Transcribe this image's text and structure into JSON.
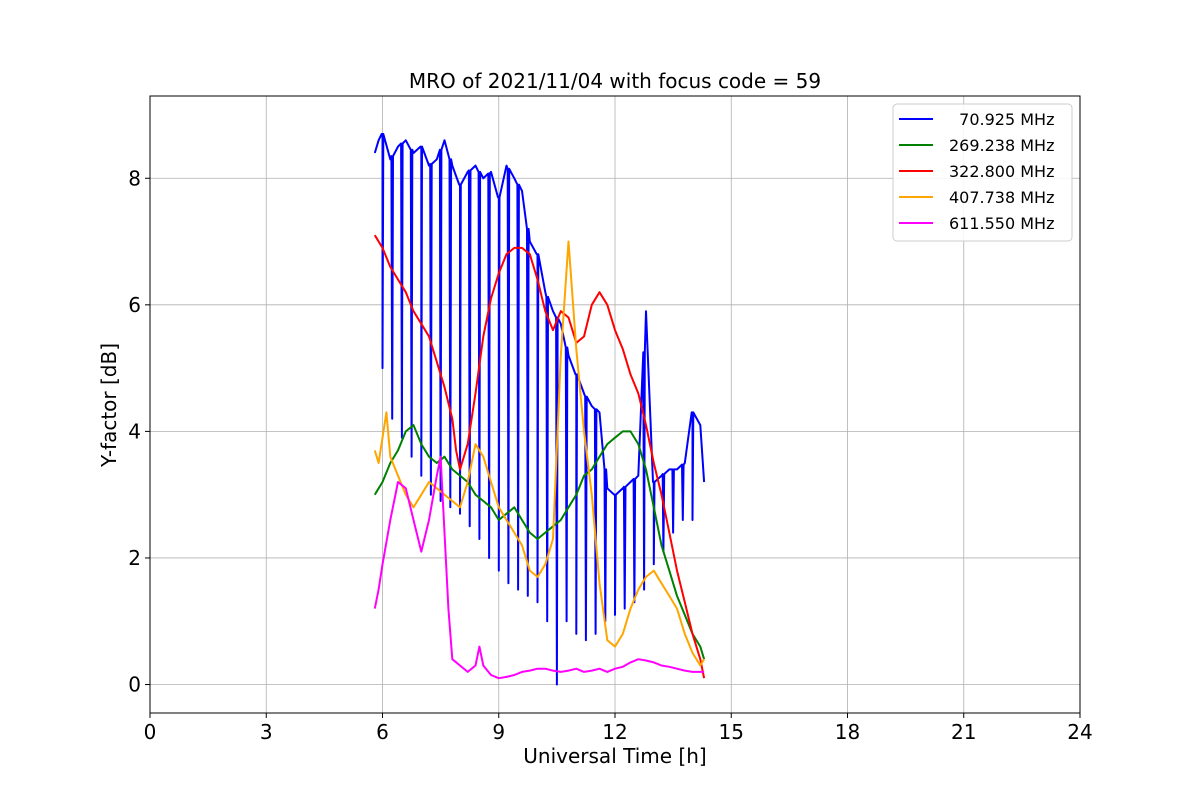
{
  "chart_data": {
    "type": "line",
    "title": "MRO of 2021/11/04 with focus code = 59",
    "xlabel": "Universal Time [h]",
    "ylabel": "Y-factor [dB]",
    "xlim": [
      0,
      24
    ],
    "ylim": [
      -0.45,
      9.3
    ],
    "xticks": [
      0,
      3,
      6,
      9,
      12,
      15,
      18,
      21,
      24
    ],
    "yticks": [
      0,
      2,
      4,
      6,
      8
    ],
    "grid": true,
    "legend_position": "top-right",
    "series": [
      {
        "name": "  70.925 MHz",
        "color": "#0000ff",
        "x": [
          5.8,
          5.9,
          6.0,
          6.2,
          6.4,
          6.6,
          6.8,
          7.0,
          7.2,
          7.4,
          7.6,
          7.8,
          8.0,
          8.2,
          8.4,
          8.6,
          8.8,
          9.0,
          9.2,
          9.4,
          9.6,
          9.8,
          10.0,
          10.2,
          10.4,
          10.6,
          10.8,
          11.0,
          11.2,
          11.4,
          11.6,
          11.8,
          12.0,
          12.2,
          12.4,
          12.6,
          12.8,
          13.0,
          13.2,
          13.4,
          13.6,
          13.8,
          14.0,
          14.2,
          14.3
        ],
        "y": [
          8.4,
          8.6,
          8.7,
          8.3,
          8.5,
          8.6,
          8.4,
          8.5,
          8.2,
          8.3,
          8.6,
          8.2,
          7.9,
          8.1,
          8.2,
          8.0,
          8.1,
          7.7,
          8.2,
          8.0,
          7.8,
          7.0,
          6.8,
          6.2,
          5.9,
          5.7,
          5.2,
          4.9,
          4.6,
          4.4,
          4.3,
          3.1,
          3.0,
          3.1,
          3.2,
          3.3,
          5.9,
          3.2,
          3.3,
          3.4,
          3.4,
          3.5,
          4.3,
          4.1,
          3.2
        ],
        "dip_x": [
          6.0,
          6.25,
          6.5,
          6.75,
          7.0,
          7.25,
          7.5,
          7.75,
          8.0,
          8.25,
          8.5,
          8.75,
          9.0,
          9.25,
          9.5,
          9.75,
          10.0,
          10.25,
          10.5,
          10.75,
          11.0,
          11.25,
          11.5,
          11.75,
          12.0,
          12.25,
          12.5,
          12.75,
          13.0,
          13.25,
          13.5,
          13.75,
          14.0
        ],
        "dip_y": [
          5.0,
          4.2,
          3.9,
          3.6,
          3.3,
          3.0,
          2.9,
          2.8,
          2.7,
          2.5,
          2.3,
          2.0,
          1.8,
          1.6,
          1.5,
          1.4,
          1.3,
          1.0,
          0.0,
          1.0,
          0.8,
          0.7,
          0.8,
          1.0,
          1.1,
          1.2,
          1.3,
          1.5,
          1.9,
          2.1,
          2.4,
          2.6,
          2.6
        ]
      },
      {
        "name": "269.238 MHz",
        "color": "#008000",
        "x": [
          5.8,
          6.0,
          6.2,
          6.4,
          6.6,
          6.8,
          7.0,
          7.2,
          7.4,
          7.6,
          7.8,
          8.0,
          8.2,
          8.4,
          8.6,
          8.8,
          9.0,
          9.2,
          9.4,
          9.6,
          9.8,
          10.0,
          10.2,
          10.4,
          10.6,
          10.8,
          11.0,
          11.2,
          11.4,
          11.6,
          11.8,
          12.0,
          12.2,
          12.4,
          12.6,
          12.8,
          13.0,
          13.2,
          13.4,
          13.6,
          13.8,
          14.0,
          14.2,
          14.3
        ],
        "y": [
          3.0,
          3.2,
          3.5,
          3.7,
          4.0,
          4.1,
          3.8,
          3.6,
          3.5,
          3.6,
          3.4,
          3.3,
          3.2,
          3.0,
          2.9,
          2.8,
          2.6,
          2.7,
          2.8,
          2.6,
          2.4,
          2.3,
          2.4,
          2.5,
          2.6,
          2.8,
          3.0,
          3.3,
          3.4,
          3.6,
          3.8,
          3.9,
          4.0,
          4.0,
          3.8,
          3.4,
          2.8,
          2.2,
          1.8,
          1.4,
          1.1,
          0.8,
          0.6,
          0.4
        ]
      },
      {
        "name": "322.800 MHz",
        "color": "#ff0000",
        "x": [
          5.8,
          6.0,
          6.2,
          6.4,
          6.6,
          6.8,
          7.0,
          7.2,
          7.4,
          7.6,
          7.8,
          7.9,
          8.0,
          8.2,
          8.4,
          8.6,
          8.8,
          9.0,
          9.2,
          9.4,
          9.6,
          9.8,
          10.0,
          10.2,
          10.4,
          10.6,
          10.8,
          11.0,
          11.2,
          11.4,
          11.6,
          11.8,
          12.0,
          12.2,
          12.4,
          12.6,
          12.8,
          13.0,
          13.2,
          13.4,
          13.6,
          13.8,
          14.0,
          14.2,
          14.3
        ],
        "y": [
          7.1,
          6.9,
          6.6,
          6.4,
          6.2,
          5.9,
          5.7,
          5.5,
          5.1,
          4.7,
          4.2,
          3.7,
          3.4,
          3.8,
          4.6,
          5.5,
          6.1,
          6.5,
          6.8,
          6.9,
          6.9,
          6.8,
          6.4,
          5.9,
          5.6,
          5.9,
          5.8,
          5.4,
          5.5,
          6.0,
          6.2,
          6.0,
          5.6,
          5.3,
          4.9,
          4.6,
          4.1,
          3.5,
          3.0,
          2.4,
          1.8,
          1.3,
          0.8,
          0.4,
          0.1
        ]
      },
      {
        "name": "407.738 MHz",
        "color": "#ffa500",
        "x": [
          5.8,
          5.9,
          6.0,
          6.1,
          6.2,
          6.4,
          6.6,
          6.8,
          7.0,
          7.2,
          7.4,
          7.6,
          7.8,
          8.0,
          8.2,
          8.4,
          8.6,
          8.8,
          9.0,
          9.2,
          9.4,
          9.6,
          9.8,
          10.0,
          10.2,
          10.4,
          10.6,
          10.8,
          11.0,
          11.2,
          11.4,
          11.6,
          11.8,
          12.0,
          12.2,
          12.4,
          12.6,
          12.8,
          13.0,
          13.2,
          13.4,
          13.6,
          13.8,
          14.0,
          14.2,
          14.3
        ],
        "y": [
          3.7,
          3.5,
          3.9,
          4.3,
          3.6,
          3.3,
          3.0,
          2.8,
          3.0,
          3.2,
          3.1,
          3.0,
          2.9,
          2.8,
          3.2,
          3.8,
          3.6,
          3.2,
          2.8,
          2.6,
          2.4,
          2.2,
          1.8,
          1.7,
          1.9,
          2.3,
          5.2,
          7.0,
          5.3,
          4.0,
          3.0,
          1.6,
          0.7,
          0.6,
          0.8,
          1.2,
          1.5,
          1.7,
          1.8,
          1.6,
          1.4,
          1.2,
          0.8,
          0.5,
          0.3,
          0.4
        ]
      },
      {
        "name": "611.550 MHz",
        "color": "#ff00ff",
        "x": [
          5.8,
          5.9,
          6.0,
          6.2,
          6.4,
          6.6,
          6.8,
          7.0,
          7.2,
          7.4,
          7.5,
          7.6,
          7.7,
          7.8,
          8.0,
          8.2,
          8.4,
          8.5,
          8.6,
          8.8,
          9.0,
          9.2,
          9.4,
          9.6,
          9.8,
          10.0,
          10.2,
          10.4,
          10.6,
          10.8,
          11.0,
          11.2,
          11.4,
          11.6,
          11.8,
          12.0,
          12.2,
          12.4,
          12.6,
          12.8,
          13.0,
          13.2,
          13.4,
          13.6,
          13.8,
          14.0,
          14.2,
          14.3
        ],
        "y": [
          1.2,
          1.5,
          1.9,
          2.6,
          3.2,
          3.1,
          2.6,
          2.1,
          2.6,
          3.3,
          3.6,
          2.4,
          1.2,
          0.4,
          0.3,
          0.2,
          0.3,
          0.6,
          0.3,
          0.15,
          0.1,
          0.12,
          0.15,
          0.2,
          0.22,
          0.25,
          0.25,
          0.22,
          0.2,
          0.22,
          0.25,
          0.2,
          0.22,
          0.25,
          0.2,
          0.25,
          0.28,
          0.35,
          0.4,
          0.38,
          0.35,
          0.3,
          0.28,
          0.25,
          0.22,
          0.2,
          0.2,
          0.2
        ]
      }
    ]
  }
}
